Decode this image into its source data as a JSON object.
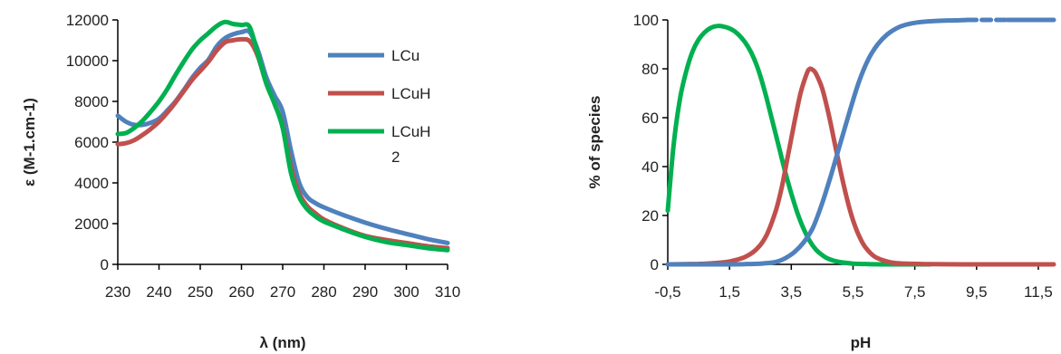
{
  "chart_data": [
    {
      "type": "line",
      "xlabel": "λ (nm)",
      "ylabel": "ε (M-1.cm-1)",
      "xlim": [
        230,
        310
      ],
      "ylim": [
        0,
        12000
      ],
      "xticks": [
        230,
        240,
        250,
        260,
        270,
        280,
        290,
        300,
        310
      ],
      "yticks": [
        0,
        2000,
        4000,
        6000,
        8000,
        10000,
        12000
      ],
      "grid": false,
      "legend_position": "right",
      "series": [
        {
          "name": "LCu",
          "color": "#4f81bd",
          "points": [
            [
              230,
              7300
            ],
            [
              232,
              7000
            ],
            [
              234,
              6850
            ],
            [
              236,
              6850
            ],
            [
              238,
              6950
            ],
            [
              240,
              7150
            ],
            [
              242,
              7550
            ],
            [
              244,
              8000
            ],
            [
              246,
              8550
            ],
            [
              248,
              9150
            ],
            [
              250,
              9650
            ],
            [
              252,
              10050
            ],
            [
              254,
              10700
            ],
            [
              256,
              11100
            ],
            [
              258,
              11300
            ],
            [
              260,
              11400
            ],
            [
              262,
              11400
            ],
            [
              264,
              10500
            ],
            [
              266,
              9200
            ],
            [
              268,
              8300
            ],
            [
              270,
              7500
            ],
            [
              272,
              5600
            ],
            [
              274,
              4000
            ],
            [
              276,
              3300
            ],
            [
              278,
              3000
            ],
            [
              280,
              2800
            ],
            [
              285,
              2400
            ],
            [
              290,
              2050
            ],
            [
              295,
              1750
            ],
            [
              300,
              1500
            ],
            [
              305,
              1250
            ],
            [
              310,
              1050
            ]
          ]
        },
        {
          "name": "LCuH",
          "color": "#c0504d",
          "points": [
            [
              230,
              5900
            ],
            [
              232,
              5950
            ],
            [
              234,
              6100
            ],
            [
              236,
              6350
            ],
            [
              238,
              6650
            ],
            [
              240,
              7000
            ],
            [
              242,
              7450
            ],
            [
              244,
              7950
            ],
            [
              246,
              8500
            ],
            [
              248,
              9050
            ],
            [
              250,
              9500
            ],
            [
              252,
              9950
            ],
            [
              254,
              10500
            ],
            [
              256,
              10900
            ],
            [
              258,
              11000
            ],
            [
              260,
              11050
            ],
            [
              262,
              10950
            ],
            [
              264,
              10200
            ],
            [
              266,
              8900
            ],
            [
              268,
              7900
            ],
            [
              270,
              6800
            ],
            [
              272,
              4800
            ],
            [
              274,
              3500
            ],
            [
              276,
              2850
            ],
            [
              278,
              2500
            ],
            [
              280,
              2200
            ],
            [
              285,
              1750
            ],
            [
              290,
              1400
            ],
            [
              295,
              1200
            ],
            [
              300,
              1050
            ],
            [
              305,
              900
            ],
            [
              310,
              800
            ]
          ]
        },
        {
          "name": "LCuH 2",
          "color": "#00b050",
          "points": [
            [
              230,
              6400
            ],
            [
              232,
              6450
            ],
            [
              234,
              6700
            ],
            [
              236,
              7050
            ],
            [
              238,
              7500
            ],
            [
              240,
              8000
            ],
            [
              242,
              8600
            ],
            [
              244,
              9300
            ],
            [
              246,
              9950
            ],
            [
              248,
              10550
            ],
            [
              250,
              11000
            ],
            [
              252,
              11350
            ],
            [
              254,
              11700
            ],
            [
              256,
              11900
            ],
            [
              258,
              11800
            ],
            [
              260,
              11750
            ],
            [
              262,
              11650
            ],
            [
              264,
              10300
            ],
            [
              266,
              8900
            ],
            [
              268,
              7900
            ],
            [
              270,
              6700
            ],
            [
              272,
              4500
            ],
            [
              274,
              3300
            ],
            [
              276,
              2700
            ],
            [
              278,
              2350
            ],
            [
              280,
              2100
            ],
            [
              285,
              1700
            ],
            [
              290,
              1350
            ],
            [
              295,
              1100
            ],
            [
              300,
              950
            ],
            [
              305,
              800
            ],
            [
              310,
              700
            ]
          ]
        }
      ]
    },
    {
      "type": "line",
      "xlabel": "pH",
      "ylabel": "% of species",
      "xlim": [
        -0.5,
        12
      ],
      "ylim": [
        0,
        100
      ],
      "xtick_labels": [
        "-0,5",
        "1,5",
        "3,5",
        "5,5",
        "7,5",
        "9,5",
        "11,5"
      ],
      "xticks": [
        -0.5,
        1.5,
        3.5,
        5.5,
        7.5,
        9.5,
        11.5
      ],
      "yticks": [
        0,
        20,
        40,
        60,
        80,
        100
      ],
      "grid": false,
      "series": [
        {
          "color": "#00b050",
          "points": [
            [
              -0.5,
              22
            ],
            [
              -0.3,
              50
            ],
            [
              -0.1,
              68
            ],
            [
              0.1,
              79
            ],
            [
              0.3,
              87
            ],
            [
              0.5,
              92
            ],
            [
              0.7,
              95
            ],
            [
              0.9,
              96.8
            ],
            [
              1.1,
              97.5
            ],
            [
              1.3,
              97.3
            ],
            [
              1.5,
              96.5
            ],
            [
              1.7,
              95
            ],
            [
              1.9,
              92.5
            ],
            [
              2.1,
              89
            ],
            [
              2.3,
              84
            ],
            [
              2.5,
              77
            ],
            [
              2.7,
              68
            ],
            [
              2.9,
              58
            ],
            [
              3.1,
              48
            ],
            [
              3.3,
              38
            ],
            [
              3.5,
              29
            ],
            [
              3.7,
              21
            ],
            [
              3.9,
              14.5
            ],
            [
              4.1,
              9.5
            ],
            [
              4.3,
              6
            ],
            [
              4.5,
              3.8
            ],
            [
              4.7,
              2.3
            ],
            [
              5.0,
              1.1
            ],
            [
              5.5,
              0.3
            ],
            [
              6.0,
              0.1
            ],
            [
              7.0,
              0
            ],
            [
              8.0,
              0
            ]
          ]
        },
        {
          "color": "#c0504d",
          "points": [
            [
              -0.5,
              0
            ],
            [
              0,
              0.1
            ],
            [
              0.5,
              0.2
            ],
            [
              1,
              0.5
            ],
            [
              1.5,
              1.2
            ],
            [
              2,
              3
            ],
            [
              2.4,
              6.5
            ],
            [
              2.7,
              12
            ],
            [
              3.0,
              22
            ],
            [
              3.2,
              32
            ],
            [
              3.4,
              45
            ],
            [
              3.6,
              58
            ],
            [
              3.8,
              70
            ],
            [
              4.0,
              78
            ],
            [
              4.1,
              80
            ],
            [
              4.2,
              79.5
            ],
            [
              4.3,
              78
            ],
            [
              4.5,
              72
            ],
            [
              4.7,
              62
            ],
            [
              4.9,
              50
            ],
            [
              5.1,
              38
            ],
            [
              5.3,
              27
            ],
            [
              5.5,
              18
            ],
            [
              5.7,
              11.5
            ],
            [
              5.9,
              7
            ],
            [
              6.2,
              3.2
            ],
            [
              6.6,
              1.2
            ],
            [
              7.0,
              0.4
            ],
            [
              8.0,
              0.1
            ],
            [
              9,
              0
            ],
            [
              10,
              0
            ],
            [
              11,
              0
            ],
            [
              12,
              0
            ]
          ]
        },
        {
          "color": "#4f81bd",
          "points": [
            [
              -0.5,
              0
            ],
            [
              1,
              0
            ],
            [
              2,
              0.1
            ],
            [
              2.5,
              0.3
            ],
            [
              3.0,
              1
            ],
            [
              3.3,
              2.5
            ],
            [
              3.6,
              5
            ],
            [
              3.9,
              9
            ],
            [
              4.2,
              15
            ],
            [
              4.5,
              25
            ],
            [
              4.8,
              37
            ],
            [
              5.1,
              50
            ],
            [
              5.4,
              63
            ],
            [
              5.7,
              75
            ],
            [
              6.0,
              84
            ],
            [
              6.3,
              90
            ],
            [
              6.6,
              94
            ],
            [
              6.9,
              96.5
            ],
            [
              7.2,
              98
            ],
            [
              7.6,
              99
            ],
            [
              8.2,
              99.6
            ],
            [
              8.8,
              99.8
            ],
            [
              9.2,
              100
            ],
            [
              9.5,
              100
            ],
            [
              10,
              100
            ],
            [
              10.5,
              100
            ],
            [
              11,
              100
            ],
            [
              12,
              100
            ]
          ],
          "dashed_from": 9.2,
          "dashed_to": 10.5
        }
      ]
    }
  ]
}
